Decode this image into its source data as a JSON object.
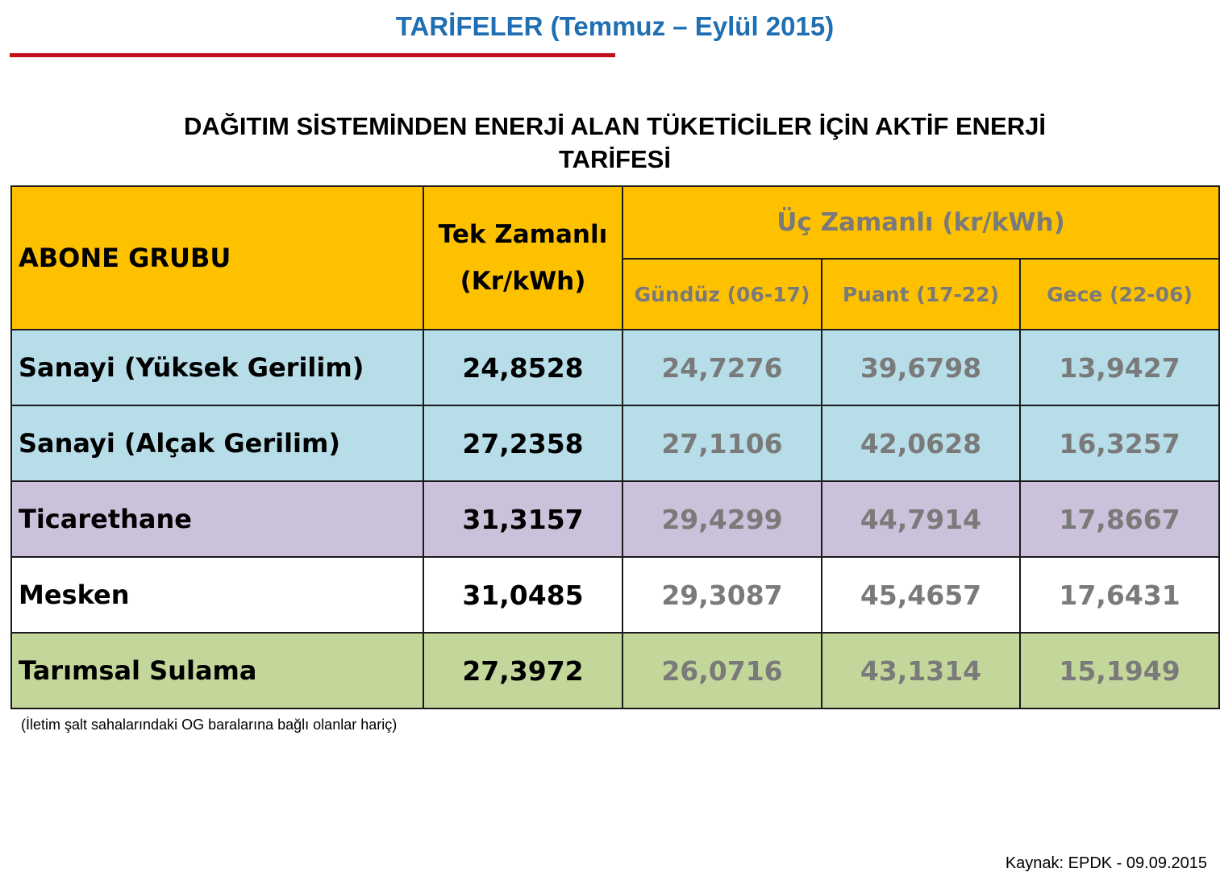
{
  "header": {
    "title": "TARİFELER (Temmuz – Eylül 2015)",
    "subtitle_line1": "DAĞITIM SİSTEMİNDEN ENERJİ ALAN TÜKETİCİLER İÇİN AKTİF ENERJİ",
    "subtitle_line2": "TARİFESİ"
  },
  "colors": {
    "title": "#1f6fb2",
    "rule": "#c0101c",
    "header_bg": "#fdc100",
    "muted_text": "#7a7a7a"
  },
  "table": {
    "col_group": "ABONE GRUBU",
    "col_single_line1": "Tek Zamanlı",
    "col_single_line2": "(Kr/kWh)",
    "col_multi": "Üç Zamanlı (kr/kWh)",
    "sub_day": "Gündüz (06-17)",
    "sub_peak": "Puant (17-22)",
    "sub_night": "Gece (22-06)",
    "rows": [
      {
        "group": "Sanayi (Yüksek Gerilim)",
        "single": "24,8528",
        "day": "24,7276",
        "peak": "39,6798",
        "night": "13,9427",
        "bg": "#b7dde8"
      },
      {
        "group": "Sanayi (Alçak Gerilim)",
        "single": "27,2358",
        "day": "27,1106",
        "peak": "42,0628",
        "night": "16,3257",
        "bg": "#b7dde8"
      },
      {
        "group": "Ticarethane",
        "single": "31,3157",
        "day": "29,4299",
        "peak": "44,7914",
        "night": "17,8667",
        "bg": "#ccc1da"
      },
      {
        "group": "Mesken",
        "single": "31,0485",
        "day": "29,3087",
        "peak": "45,4657",
        "night": "17,6431",
        "bg": "#ffffff"
      },
      {
        "group": "Tarımsal Sulama",
        "single": "27,3972",
        "day": "26,0716",
        "peak": "43,1314",
        "night": "15,1949",
        "bg": "#c4d79b"
      }
    ]
  },
  "footer": {
    "note": "(İletim şalt sahalarındaki OG baralarına bağlı olanlar hariç)",
    "source": "Kaynak: EPDK - 09.09.2015"
  }
}
